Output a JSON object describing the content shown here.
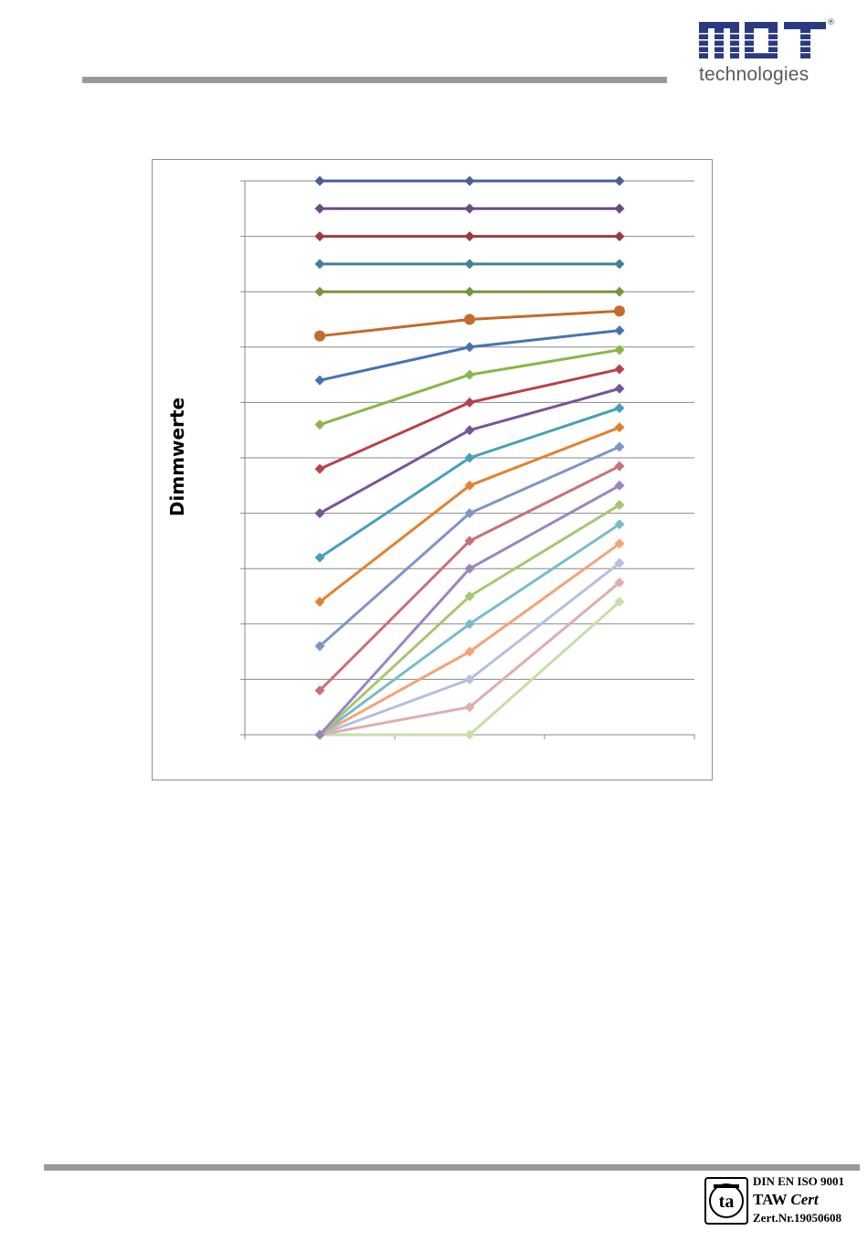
{
  "header": {
    "logo": {
      "brand": "MDT",
      "subtitle": "technologies",
      "registered_mark": "®",
      "brand_color": "#2a3a82"
    }
  },
  "footer": {
    "cert": {
      "line1": "DIN EN ISO 9001",
      "line2_a": "TAW",
      "line2_b": "Cert",
      "line3": "Zert.Nr.19050608",
      "icon": "ta-cert-seal-icon"
    }
  },
  "chart_data": {
    "type": "line",
    "title": "",
    "xlabel": "",
    "ylabel": "Dimmwerte",
    "x": [
      1,
      2,
      3
    ],
    "xlim": [
      0.5,
      3.5
    ],
    "ylim": [
      0,
      200
    ],
    "grid": true,
    "legend": "none",
    "series": [
      {
        "values": [
          200,
          200,
          200
        ],
        "color": "#4a5f95",
        "marker": "diamond"
      },
      {
        "values": [
          190,
          190,
          190
        ],
        "color": "#6a4a87",
        "marker": "diamond"
      },
      {
        "values": [
          180,
          180,
          180
        ],
        "color": "#9b3b3e",
        "marker": "diamond"
      },
      {
        "values": [
          170,
          170,
          170
        ],
        "color": "#3f839a",
        "marker": "diamond"
      },
      {
        "values": [
          160,
          160,
          160
        ],
        "color": "#7a9440",
        "marker": "diamond"
      },
      {
        "values": [
          144,
          150,
          153
        ],
        "color": "#c36b2a",
        "marker": "circle"
      },
      {
        "values": [
          128,
          140,
          146
        ],
        "color": "#4773b5",
        "marker": "diamond"
      },
      {
        "values": [
          112,
          130,
          139
        ],
        "color": "#8bb549",
        "marker": "diamond"
      },
      {
        "values": [
          96,
          120,
          132
        ],
        "color": "#b8414a",
        "marker": "diamond"
      },
      {
        "values": [
          80,
          110,
          125
        ],
        "color": "#77559a",
        "marker": "diamond"
      },
      {
        "values": [
          64,
          100,
          118
        ],
        "color": "#45a1b8",
        "marker": "diamond"
      },
      {
        "values": [
          48,
          90,
          111
        ],
        "color": "#e3822e",
        "marker": "diamond"
      },
      {
        "values": [
          32,
          80,
          104
        ],
        "color": "#7f95c8",
        "marker": "diamond"
      },
      {
        "values": [
          16,
          70,
          97
        ],
        "color": "#c8707a",
        "marker": "diamond"
      },
      {
        "values": [
          0,
          60,
          90
        ],
        "color": "#9c85bd",
        "marker": "diamond"
      },
      {
        "values": [
          0,
          50,
          83
        ],
        "color": "#a6c76e",
        "marker": "diamond"
      },
      {
        "values": [
          0,
          40,
          76
        ],
        "color": "#78bccc",
        "marker": "diamond"
      },
      {
        "values": [
          0,
          30,
          69
        ],
        "color": "#f3a477",
        "marker": "diamond"
      },
      {
        "values": [
          0,
          20,
          62
        ],
        "color": "#b4c0de",
        "marker": "diamond"
      },
      {
        "values": [
          0,
          10,
          55
        ],
        "color": "#dfadaf",
        "marker": "diamond"
      },
      {
        "values": [
          0,
          0,
          48
        ],
        "color": "#c7dea8",
        "marker": "diamond"
      }
    ]
  }
}
